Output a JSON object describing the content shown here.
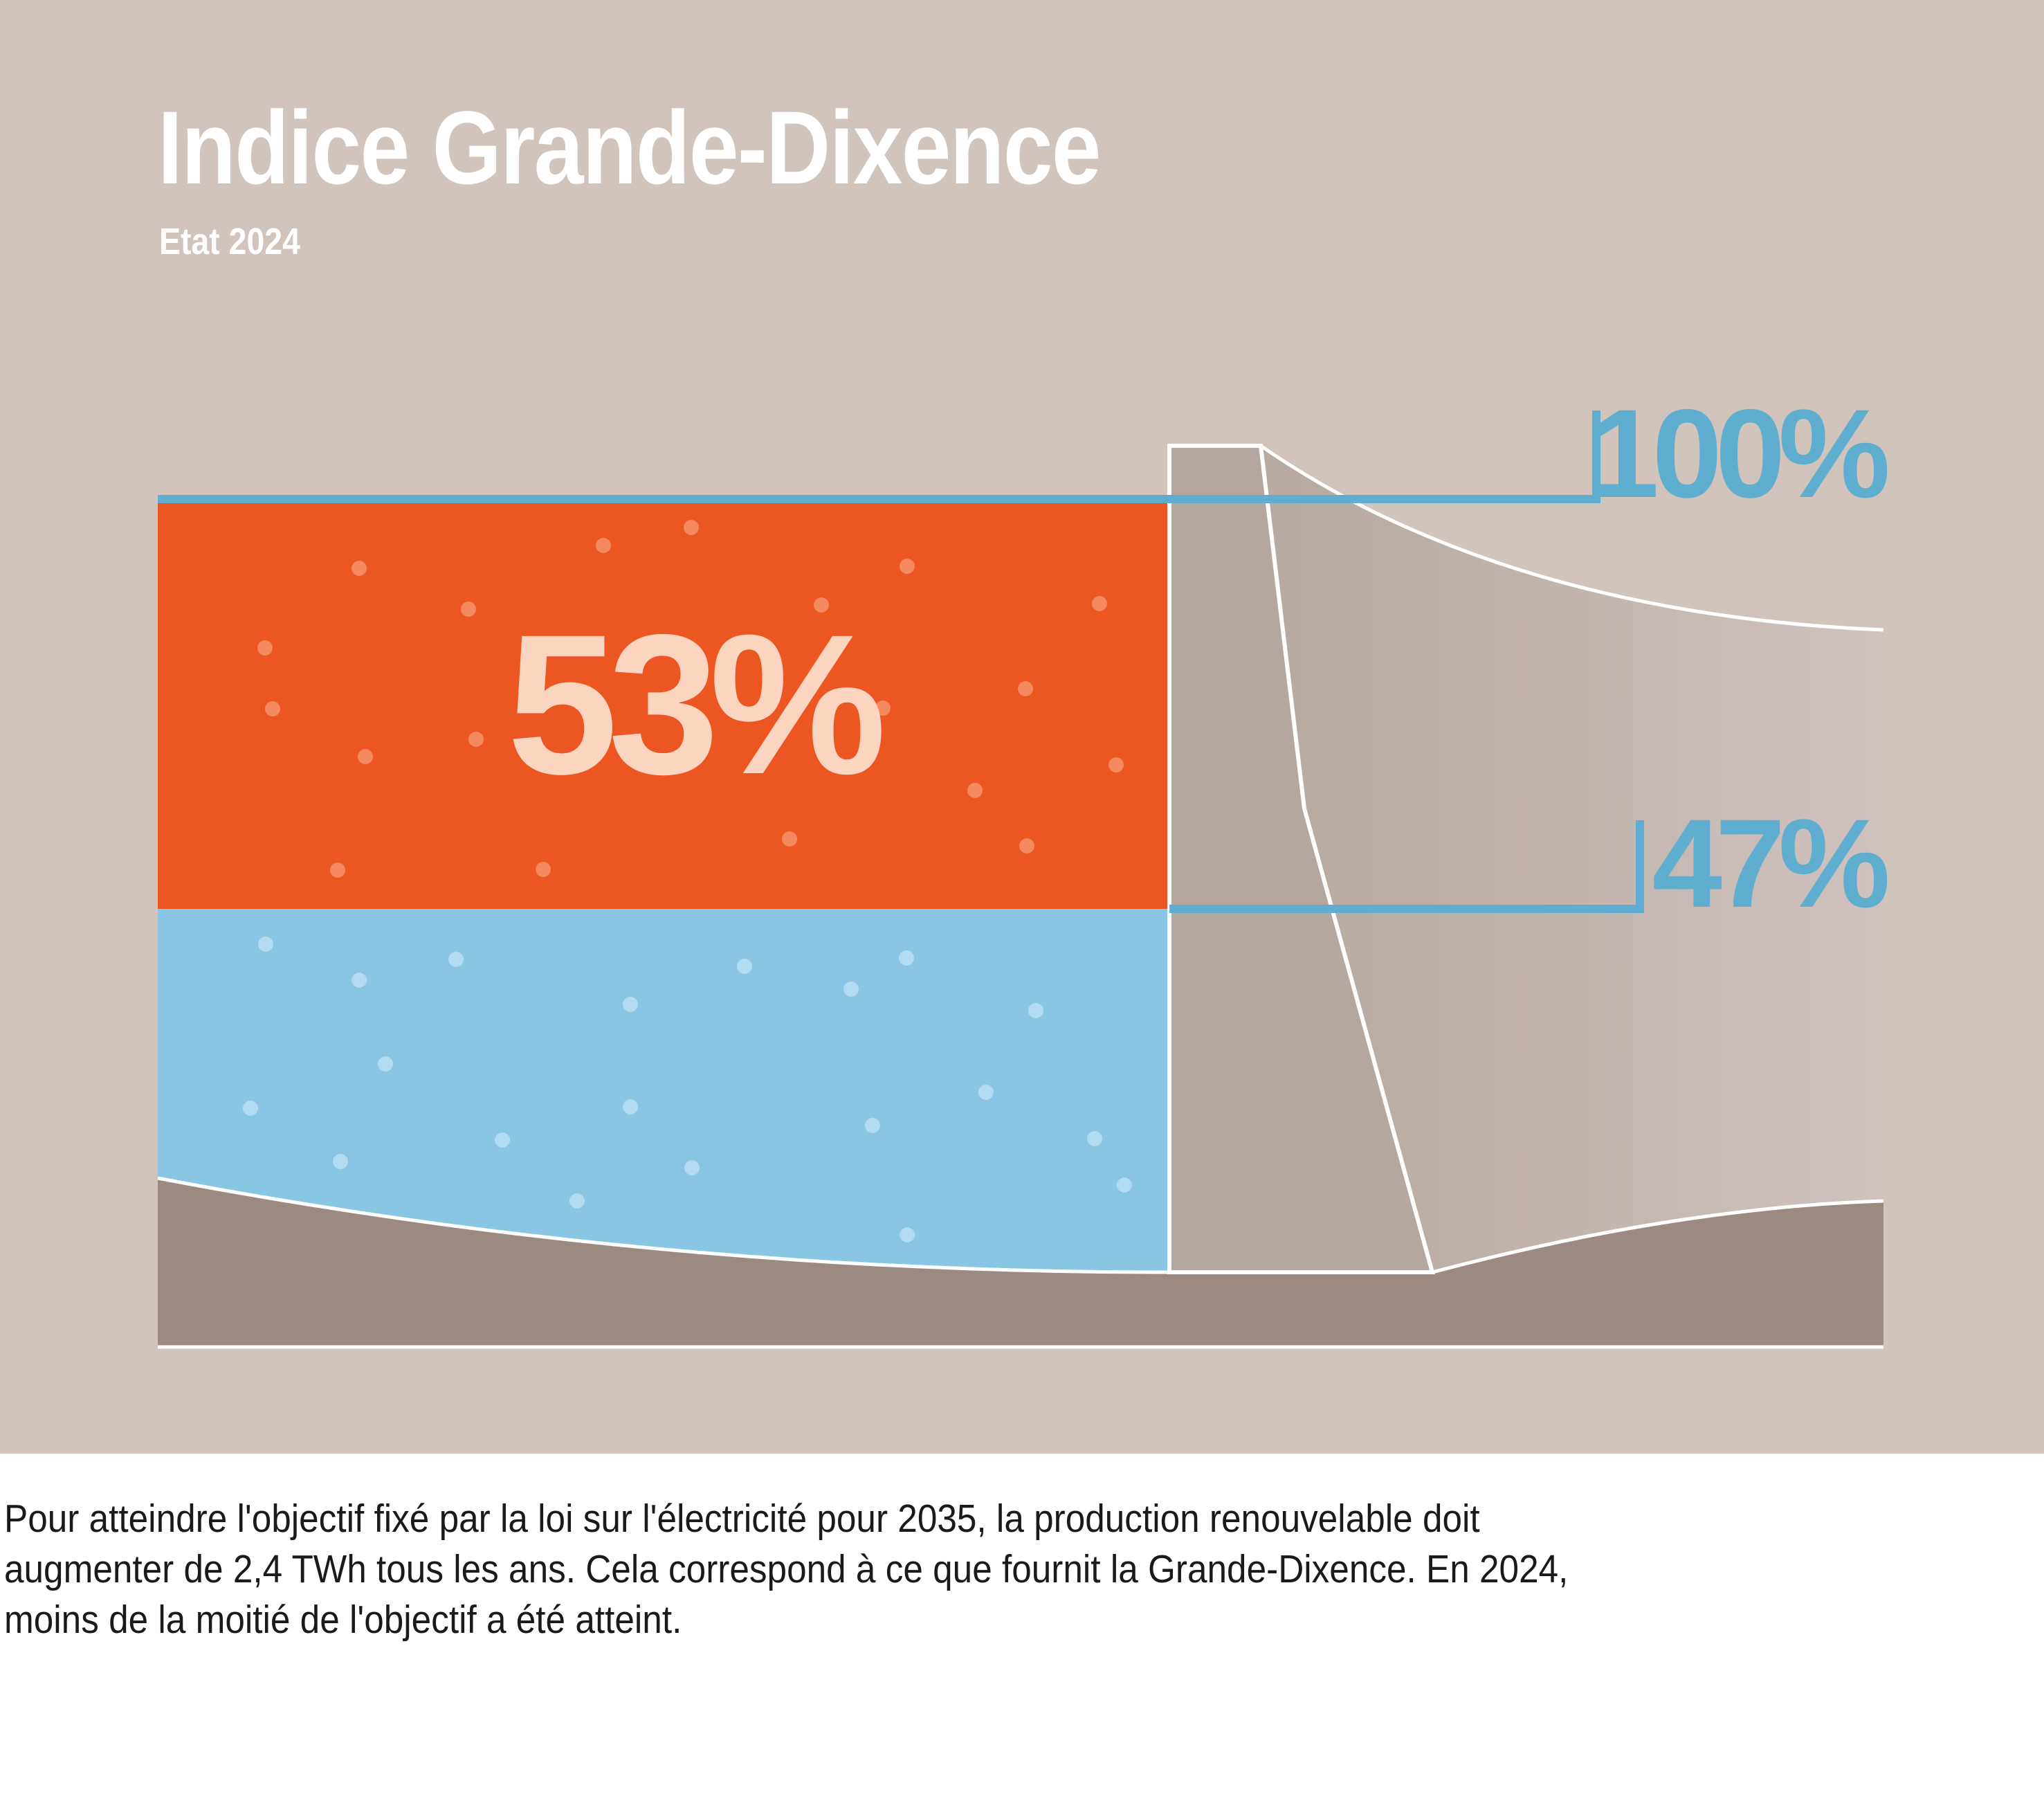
{
  "header": {
    "title": "Indice Grande-Dixence",
    "subtitle": "Etat 2024"
  },
  "chart_data": {
    "type": "bar",
    "title": "Indice Grande-Dixence",
    "subtitle": "Etat 2024",
    "ylim": [
      0,
      100
    ],
    "unit": "%",
    "series": [
      {
        "name": "",
        "value": 47,
        "label": "47%",
        "color": "#89c6e4"
      },
      {
        "name": "",
        "value": 53,
        "label": "53%",
        "color": "#ec5622"
      }
    ],
    "reference_labels": [
      {
        "value": 100,
        "label": "100%"
      },
      {
        "value": 47,
        "label": "47%"
      }
    ]
  },
  "caption": {
    "lines": [
      "Pour atteindre l'objectif fixé par la loi sur l'électricité pour 2035, la production renouvelable doit",
      "augmenter de 2,4 TWh tous les ans. Cela correspond à ce que fournit la Grande-Dixence. En 2024,",
      "moins de la moitié de l'objectif a été atteint."
    ]
  },
  "colors": {
    "background": "#d0c4bc",
    "achieved": "#89c6e4",
    "remaining": "#ec5622",
    "marker": "#5fadcf",
    "terrain": "#9b8a82",
    "dam": "#b3a79f",
    "remaining_label": "#fcd5c0"
  }
}
